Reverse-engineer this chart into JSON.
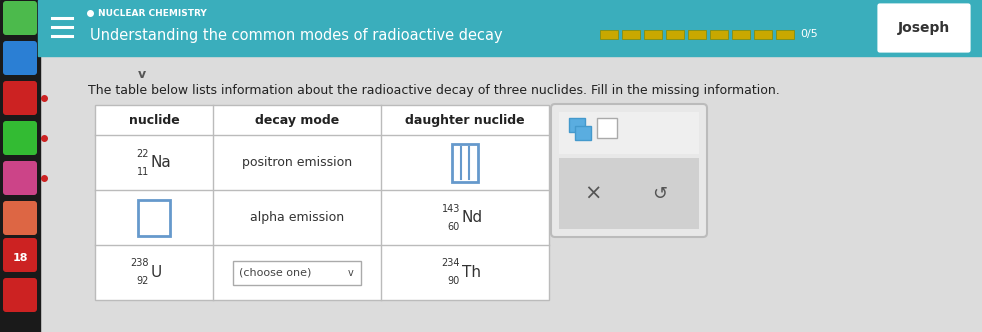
{
  "bg_color": "#dcdcdc",
  "header_bg": "#3aaebc",
  "header_text_color": "#ffffff",
  "header_subtitle": "Understanding the common modes of radioactive decay",
  "header_topic": "NUCLEAR CHEMISTRY",
  "header_user": "Joseph",
  "progress_bar_color": "#c8a800",
  "progress_text": "0/5",
  "instruction": "The table below lists information about the radioactive decay of three nuclides. Fill in the missing information.",
  "instruction_color": "#222222",
  "table_bg": "#ffffff",
  "table_border": "#bbbbbb",
  "col_headers": [
    "nuclide",
    "decay mode",
    "daughter nuclide"
  ],
  "popup_blue": "#5aade0",
  "sidebar_bg": "#1a1a1a",
  "content_bg": "#dcdcdc"
}
